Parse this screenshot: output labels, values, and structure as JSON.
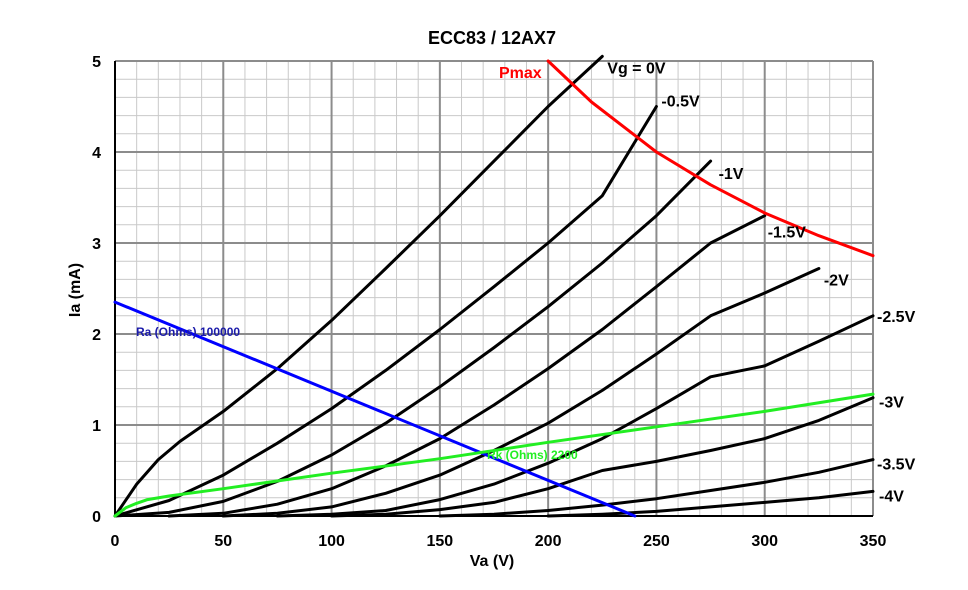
{
  "chart_data": {
    "type": "line",
    "title": "ECC83 / 12AX7",
    "xlabel": "Va (V)",
    "ylabel": "Ia (mA)",
    "xlim": [
      0,
      350
    ],
    "ylim": [
      0,
      5
    ],
    "x_ticks": [
      0,
      50,
      100,
      150,
      200,
      250,
      300,
      350
    ],
    "y_ticks": [
      0,
      1,
      2,
      3,
      4,
      5
    ],
    "grid": true,
    "series": [
      {
        "name": "Vg = 0V",
        "x": [
          0,
          10,
          20,
          30,
          50,
          75,
          100,
          125,
          150,
          175,
          200,
          225
        ],
        "y": [
          0,
          0.35,
          0.62,
          0.82,
          1.15,
          1.62,
          2.15,
          2.72,
          3.3,
          3.9,
          4.5,
          5.05
        ],
        "color": "#000000"
      },
      {
        "name": "-0.5V",
        "x": [
          0,
          25,
          50,
          75,
          100,
          125,
          150,
          175,
          200,
          225,
          250
        ],
        "y": [
          0,
          0.17,
          0.45,
          0.8,
          1.18,
          1.6,
          2.05,
          2.52,
          3.0,
          3.52,
          4.5
        ],
        "color": "#000000"
      },
      {
        "name": "-1V",
        "x": [
          0,
          25,
          50,
          75,
          100,
          125,
          150,
          175,
          200,
          225,
          250,
          275
        ],
        "y": [
          0,
          0.04,
          0.16,
          0.38,
          0.67,
          1.02,
          1.42,
          1.85,
          2.3,
          2.78,
          3.3,
          3.9
        ],
        "color": "#000000"
      },
      {
        "name": "-1.5V",
        "x": [
          25,
          50,
          75,
          100,
          125,
          150,
          175,
          200,
          225,
          250,
          275,
          300
        ],
        "y": [
          0,
          0.03,
          0.13,
          0.3,
          0.55,
          0.85,
          1.22,
          1.62,
          2.05,
          2.52,
          3.0,
          3.3
        ],
        "color": "#000000"
      },
      {
        "name": "-2V",
        "x": [
          50,
          75,
          100,
          125,
          150,
          175,
          200,
          225,
          250,
          275,
          300,
          325
        ],
        "y": [
          0,
          0.03,
          0.1,
          0.25,
          0.45,
          0.72,
          1.02,
          1.38,
          1.78,
          2.2,
          2.45,
          2.72
        ],
        "color": "#000000"
      },
      {
        "name": "-2.5V",
        "x": [
          75,
          100,
          125,
          150,
          175,
          200,
          225,
          250,
          275,
          300,
          325,
          350
        ],
        "y": [
          0,
          0.02,
          0.06,
          0.18,
          0.35,
          0.58,
          0.85,
          1.18,
          1.53,
          1.65,
          1.92,
          2.2
        ],
        "color": "#000000"
      },
      {
        "name": "-3V",
        "x": [
          100,
          125,
          150,
          175,
          200,
          225,
          250,
          275,
          300,
          325,
          350
        ],
        "y": [
          0,
          0.02,
          0.07,
          0.15,
          0.3,
          0.5,
          0.6,
          0.72,
          0.85,
          1.05,
          1.3
        ],
        "color": "#000000"
      },
      {
        "name": "-3.5V",
        "x": [
          150,
          175,
          200,
          225,
          250,
          275,
          300,
          325,
          350
        ],
        "y": [
          0,
          0.02,
          0.06,
          0.12,
          0.19,
          0.28,
          0.37,
          0.48,
          0.62
        ],
        "color": "#000000"
      },
      {
        "name": "-4V",
        "x": [
          200,
          225,
          250,
          275,
          300,
          325,
          350
        ],
        "y": [
          0,
          0.02,
          0.05,
          0.1,
          0.15,
          0.2,
          0.27
        ],
        "color": "#000000"
      },
      {
        "name": "Pmax",
        "x": [
          200,
          220,
          250,
          275,
          300,
          325,
          350
        ],
        "y": [
          5.0,
          4.55,
          4.0,
          3.64,
          3.33,
          3.08,
          2.86
        ],
        "color": "#ff0000"
      },
      {
        "name": "Ra (Ohms) 100000",
        "x": [
          0,
          240
        ],
        "y": [
          2.35,
          0
        ],
        "color": "#0000ff"
      },
      {
        "name": "Rk (Ohms) 2200",
        "x": [
          0,
          5,
          10,
          15,
          25,
          50,
          100,
          150,
          200,
          250,
          300,
          350
        ],
        "y": [
          0,
          0.09,
          0.14,
          0.18,
          0.22,
          0.3,
          0.47,
          0.63,
          0.81,
          0.98,
          1.15,
          1.34
        ],
        "color": "#22ee22"
      }
    ]
  }
}
